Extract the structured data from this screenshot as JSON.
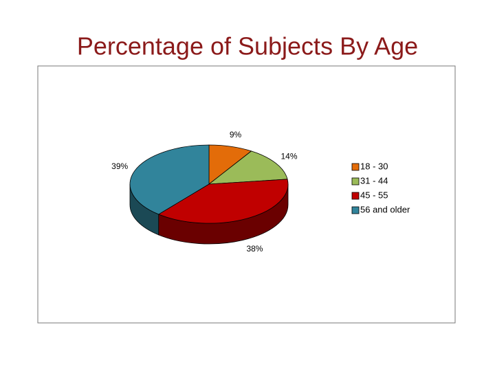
{
  "chart_data": {
    "type": "pie",
    "title": "Percentage of Subjects By Age",
    "categories": [
      "18 - 30",
      "31 - 44",
      "45 - 55",
      "56 and older"
    ],
    "values": [
      9,
      14,
      38,
      39
    ],
    "value_labels": [
      "9%",
      "14%",
      "38%",
      "39%"
    ],
    "colors": [
      "#e36c09",
      "#9bbb59",
      "#c00000",
      "#31849b"
    ],
    "legend": "right"
  }
}
